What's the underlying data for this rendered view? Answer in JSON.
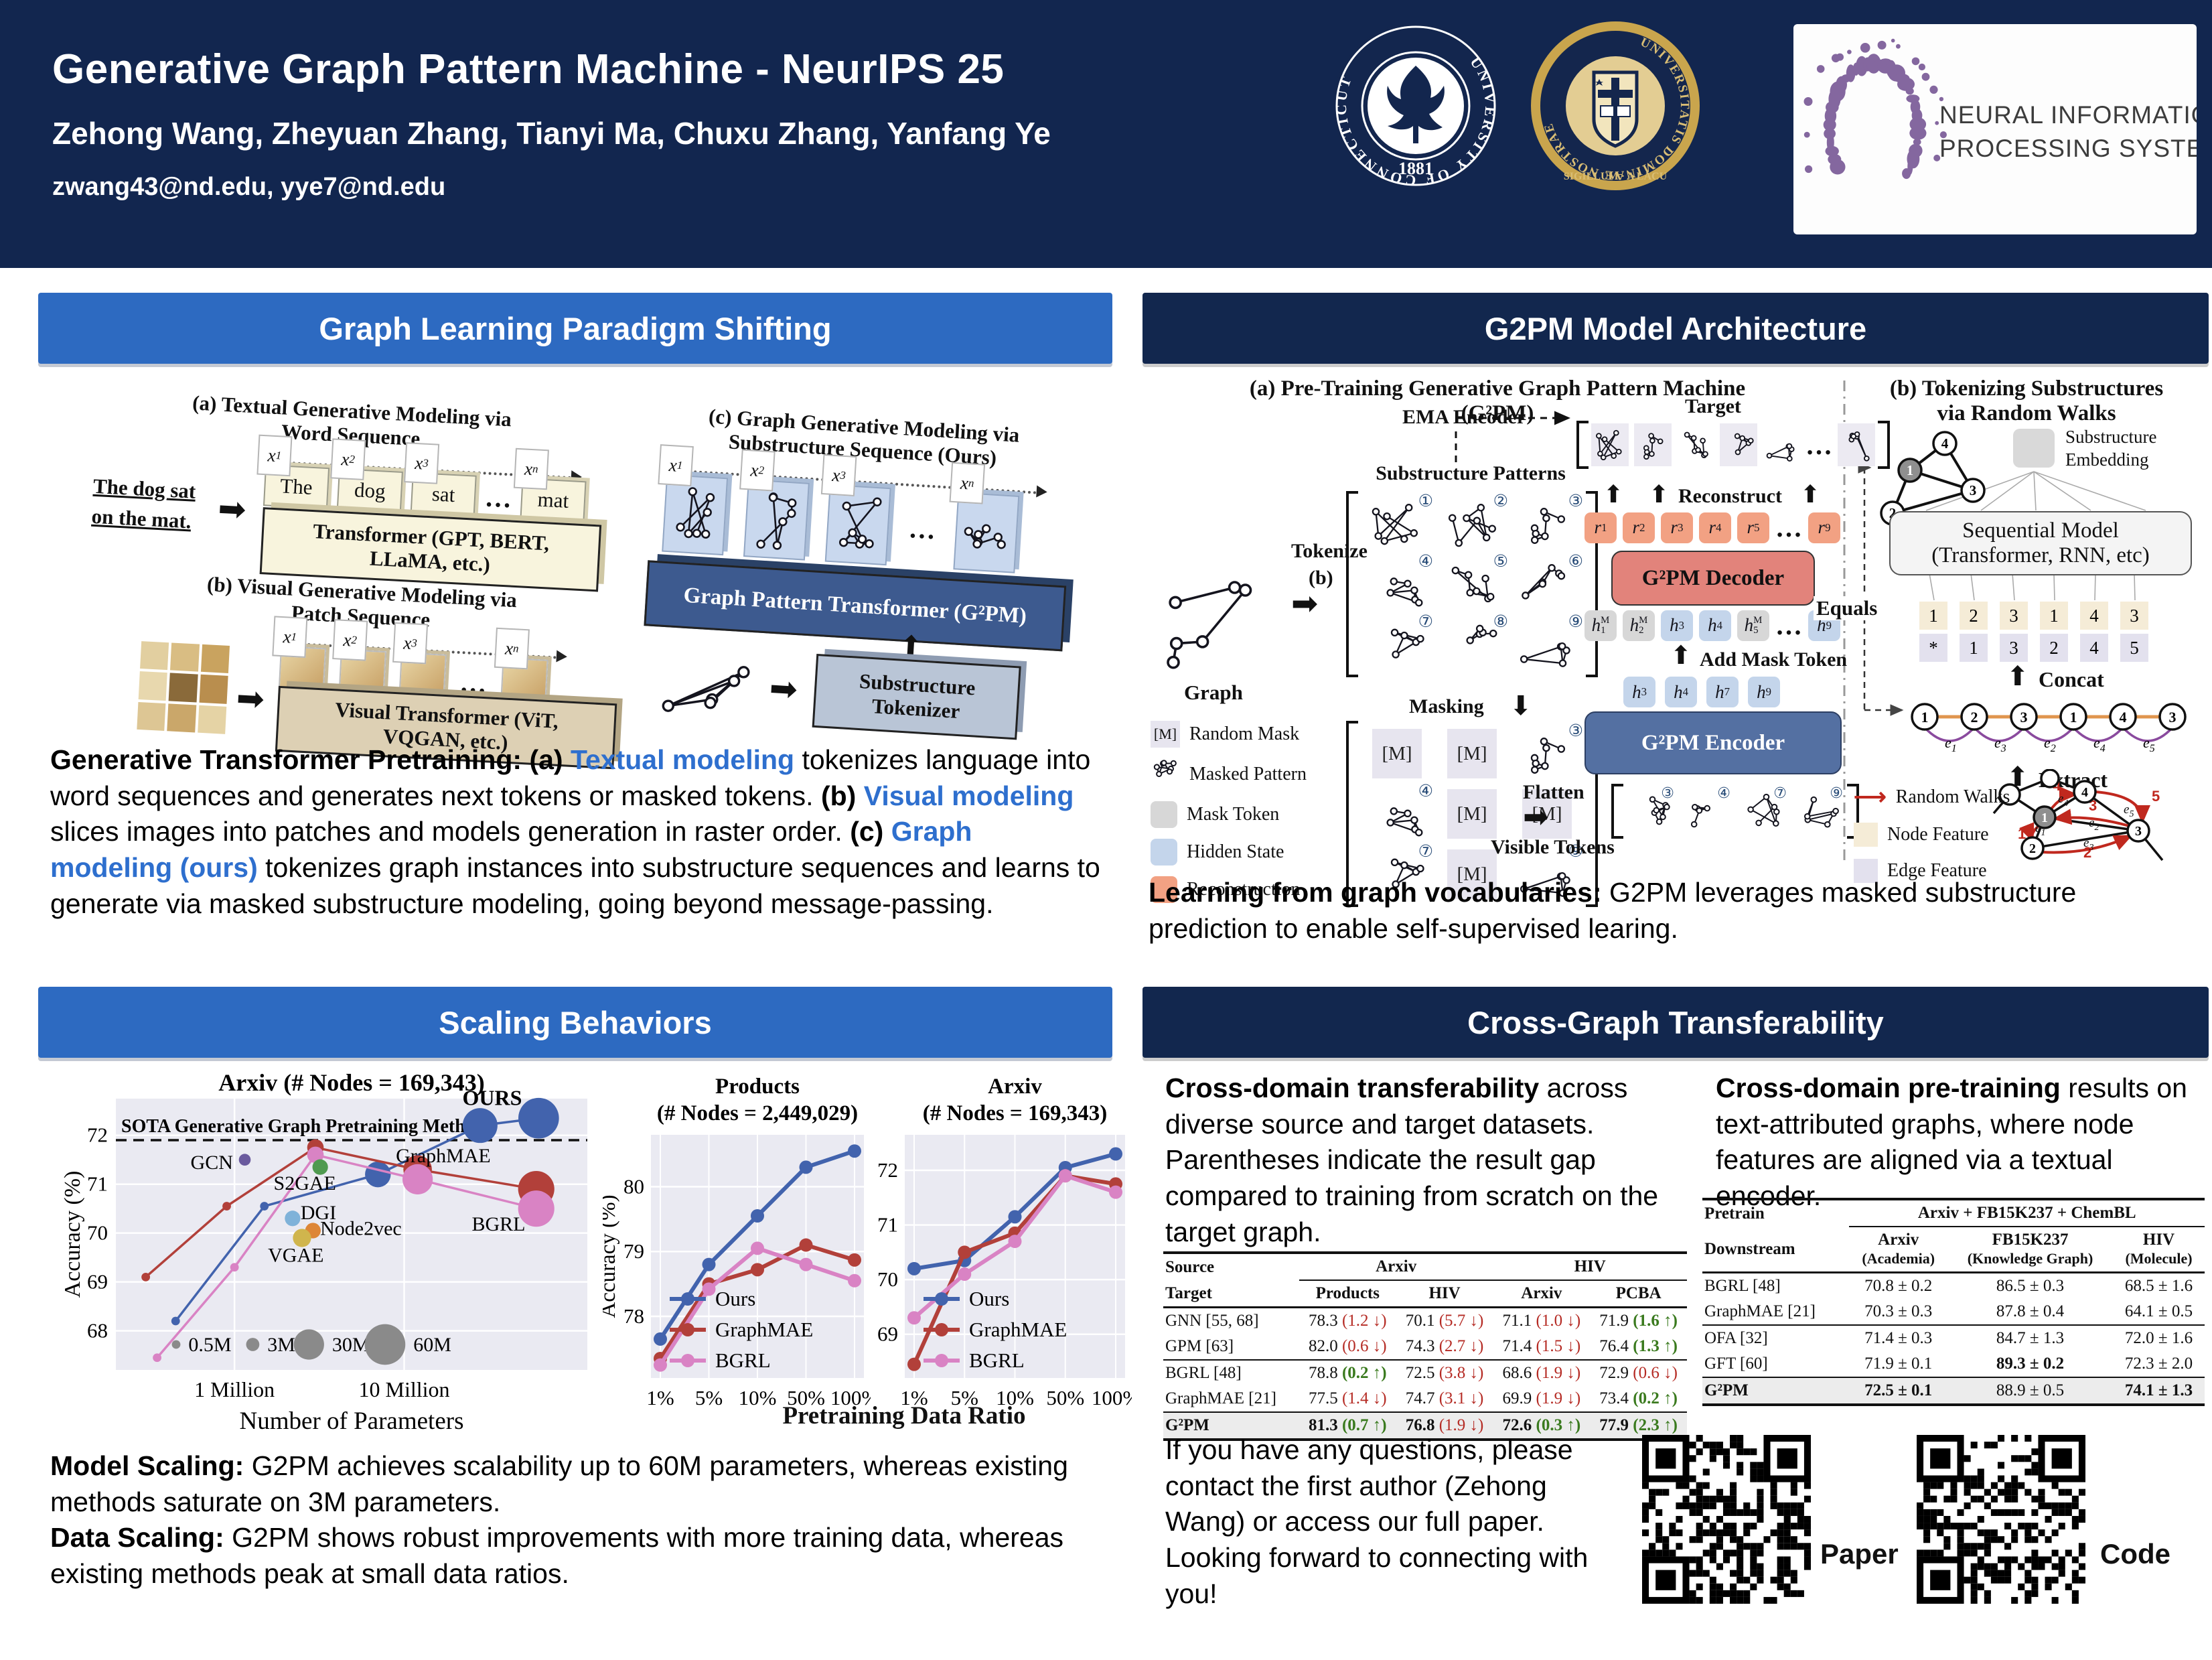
{
  "header": {
    "title": "Generative Graph Pattern Machine - NeurIPS 25",
    "authors": "Zehong Wang, Zheyuan Zhang, Tianyi Ma, Chuxu Zhang, Yanfang Ye",
    "emails": "zwang43@nd.edu, yye7@nd.edu",
    "uconn_seal": {
      "ring_text": "UNIVERSITY OF CONNECTICUT",
      "year": "1881"
    },
    "nd_seal": {
      "ring_top": "UNIVERSITATIS DOMINAE NOSTRAE",
      "ring_bottom": "SIGILLUM · A LACU"
    },
    "neurips": {
      "line1": "NEURAL INFORMATION",
      "line2": "PROCESSING SYSTEMS"
    }
  },
  "panel_headers": {
    "p1": "Graph Learning Paradigm Shifting",
    "p2": "G2PM Model Architecture",
    "p3": "Scaling Behaviors",
    "p4": "Cross-Graph Transferability"
  },
  "fig1": {
    "a_caption1": "(a) Textual Generative Modeling via",
    "a_caption2": "Word Sequence",
    "a_input1": "The dog sat",
    "a_input2": "on the mat.",
    "a_tokens": [
      {
        "tb": "x",
        "ts": "1",
        "word": "The"
      },
      {
        "tb": "x",
        "ts": "2",
        "word": "dog"
      },
      {
        "tb": "x",
        "ts": "3",
        "word": "sat"
      },
      {
        "dots": true
      },
      {
        "tb": "x",
        "ts": "n",
        "word": "mat"
      }
    ],
    "a_box1": "Transformer (GPT, BERT,",
    "a_box2": "LLaMA, etc.)",
    "b_caption1": "(b) Visual Generative Modeling via",
    "b_caption2": "Patch Sequence",
    "b_tokens": [
      {
        "tb": "x",
        "ts": "1"
      },
      {
        "tb": "x",
        "ts": "2"
      },
      {
        "tb": "x",
        "ts": "3"
      },
      {
        "dots": true
      },
      {
        "tb": "x",
        "ts": "n"
      }
    ],
    "b_box1": "Visual Transformer (ViT,",
    "b_box2": "VQGAN, etc.)",
    "c_caption1": "(c) Graph Generative Modeling via",
    "c_caption2": "Substructure Sequence (Ours)",
    "c_tokens": [
      {
        "tb": "x",
        "ts": "1"
      },
      {
        "tb": "x",
        "ts": "2"
      },
      {
        "tb": "x",
        "ts": "3"
      },
      {
        "dots": true
      },
      {
        "tb": "x",
        "ts": "n"
      }
    ],
    "c_box": "Graph Pattern Transformer (G²PM)",
    "c_tok1": "Substructure",
    "c_tok2": "Tokenizer"
  },
  "text1": {
    "segments": [
      {
        "t": "Generative Transformer Pretraining: (a) ",
        "b": true
      },
      {
        "t": "Textual modeling",
        "c": true
      },
      {
        "t": " tokenizes language into word sequences and generates next tokens or masked tokens. "
      },
      {
        "t": "(b) ",
        "b": true
      },
      {
        "t": "Visual modeling",
        "c": true
      },
      {
        "t": " slices images into patches and models generation in raster order. "
      },
      {
        "t": "(c) ",
        "b": true
      },
      {
        "t": "Graph modeling (ours)",
        "c": true
      },
      {
        "t": " tokenizes graph instances into substructure sequences and learns to generate via masked substructure modeling, going beyond message-passing."
      }
    ]
  },
  "fig2": {
    "a_caption": "(a) Pre-Training Generative Graph Pattern Machine (G²PM)",
    "b_caption1": "(b) Tokenizing Substructures",
    "b_caption2": "via Random Walks",
    "graph_label": "Graph",
    "tokenize1": "Tokenize",
    "tokenize2": "(b)",
    "patterns_label": "Substructure Patterns",
    "pattern_nums": [
      "①",
      "②",
      "③",
      "④",
      "⑤",
      "⑥",
      "⑦",
      "⑧",
      "⑨"
    ],
    "masking_label": "Masking",
    "ema_label": "EMA Encoder",
    "target_label": "Target",
    "reconstruct_label": "Reconstruct",
    "decoder_label": "G²PM Decoder",
    "encoder_label": "G²PM Encoder",
    "add_mask_label": "Add Mask Token",
    "flatten1": "Flatten",
    "flatten2": "Visible Tokens",
    "mask_cell": "[M]",
    "legend_a": [
      {
        "icon": "mask",
        "label": "Random Mask"
      },
      {
        "icon": "glyph",
        "label": "Masked Pattern"
      },
      {
        "icon": "gray",
        "label": "Mask Token"
      },
      {
        "icon": "blue",
        "label": "Hidden State"
      },
      {
        "icon": "orange",
        "label": "Reconstruction"
      }
    ],
    "r_chips": [
      {
        "b": "r",
        "s": "1"
      },
      {
        "b": "r",
        "s": "2"
      },
      {
        "b": "r",
        "s": "3"
      },
      {
        "b": "r",
        "s": "4"
      },
      {
        "b": "r",
        "s": "5"
      },
      {
        "dots": true
      },
      {
        "b": "r",
        "s": "9"
      }
    ],
    "hM_chips": [
      {
        "b": "h",
        "s": "1",
        "p": "M",
        "m": true
      },
      {
        "b": "h",
        "s": "2",
        "p": "M",
        "m": true
      },
      {
        "b": "h",
        "s": "3"
      },
      {
        "b": "h",
        "s": "4"
      },
      {
        "b": "h",
        "s": "5",
        "p": "M",
        "m": true
      },
      {
        "dots": true
      },
      {
        "b": "h",
        "s": "9"
      }
    ],
    "h_chips": [
      {
        "b": "h",
        "s": "3"
      },
      {
        "b": "h",
        "s": "4"
      },
      {
        "b": "h",
        "s": "7"
      },
      {
        "b": "h",
        "s": "9"
      }
    ],
    "visible_nums": [
      "③",
      "④",
      "⑦",
      "⑨"
    ],
    "masked_grid": [
      [
        "M",
        "M",
        "g2"
      ],
      [
        "g3",
        "M",
        "M"
      ],
      [
        "g6",
        "M",
        "g8"
      ]
    ],
    "equals_label": "Equals",
    "concat_label": "Concat",
    "extract_label": "Extract",
    "seq_model1": "Sequential Model",
    "seq_model2": "(Transformer, RNN, etc)",
    "sub_emb1": "Substructure",
    "sub_emb2": "Embedding",
    "node_seq": [
      "1",
      "2",
      "3",
      "1",
      "4",
      "3"
    ],
    "edge_seq": [
      "*",
      "1",
      "3",
      "2",
      "4",
      "5"
    ],
    "walk_nodes": [
      "1",
      "2",
      "3",
      "1",
      "4",
      "3"
    ],
    "walk_edge_labels": [
      {
        "b": "e",
        "s": "1"
      },
      {
        "b": "e",
        "s": "3"
      },
      {
        "b": "e",
        "s": "2"
      },
      {
        "b": "e",
        "s": "4"
      },
      {
        "b": "e",
        "s": "5"
      }
    ],
    "legend_b": [
      {
        "icon": "rarrow",
        "label": "Random Walks"
      },
      {
        "icon": "tan",
        "label": "Node Feature"
      },
      {
        "icon": "lav",
        "label": "Edge Feature"
      }
    ],
    "tri_nodes": [
      "4",
      "1",
      "3",
      "2"
    ],
    "wg_nodes": [
      "4",
      "1",
      "3",
      "2"
    ],
    "wg_steps": [
      "1",
      "2",
      "3",
      "4",
      "5"
    ],
    "wg_edges": [
      {
        "b": "e",
        "s": "1"
      },
      {
        "b": "e",
        "s": "2"
      },
      {
        "b": "e",
        "s": "3"
      },
      {
        "b": "e",
        "s": "4"
      },
      {
        "b": "e",
        "s": "5"
      }
    ]
  },
  "text2": {
    "segments": [
      {
        "t": "Learning from graph vocabularies: ",
        "b": true
      },
      {
        "t": "G2PM leverages masked substructure prediction to enable self-supervised learing."
      }
    ]
  },
  "chart_data": [
    {
      "type": "scatter",
      "title": "Arxiv (# Nodes = 169,343)",
      "xlabel": "Number of Parameters",
      "ylabel": "Accuracy (%)",
      "x_scale": "log (millions of parameters)",
      "xlim": [
        0.2,
        120
      ],
      "ylim": [
        67.2,
        72.75
      ],
      "x_ticks": [
        {
          "v": 1,
          "label": "1 Million"
        },
        {
          "v": 10,
          "label": "10 Million"
        }
      ],
      "y_ticks": [
        68,
        69,
        70,
        71,
        72
      ],
      "sota": {
        "y": 71.9,
        "label": "SOTA Generative Graph Pretraining Method"
      },
      "series": [
        {
          "name": "OURS",
          "color": "#4263ad",
          "points": [
            [
              0.45,
              68.2,
              0.5
            ],
            [
              1.5,
              70.55,
              0.5
            ],
            [
              7,
              71.2,
              20
            ],
            [
              28,
              72.2,
              42
            ],
            [
              62,
              72.35,
              60
            ]
          ]
        },
        {
          "name": "GraphMAE",
          "color": "#b2403a",
          "points": [
            [
              0.3,
              69.1,
              0.5
            ],
            [
              0.9,
              70.55,
              0.5
            ],
            [
              3,
              71.75,
              6
            ],
            [
              12,
              71.3,
              26
            ],
            [
              60,
              70.9,
              46
            ]
          ]
        },
        {
          "name": "BGRL",
          "color": "#d983c4",
          "points": [
            [
              0.35,
              67.45,
              0.5
            ],
            [
              1.0,
              69.3,
              0.5
            ],
            [
              3,
              71.6,
              6
            ],
            [
              12,
              71.1,
              30
            ],
            [
              60,
              70.5,
              46
            ]
          ]
        }
      ],
      "singles": [
        {
          "name": "GCN",
          "color": "#6a5a9e",
          "x": 1.15,
          "y": 71.5,
          "s": 2,
          "lx": 0.98,
          "ly": 71.45,
          "anchor": "end"
        },
        {
          "name": "S2GAE",
          "color": "#4f9a50",
          "x": 3.2,
          "y": 71.35,
          "s": 5,
          "lx": 1.7,
          "ly": 71.02,
          "anchor": "start"
        },
        {
          "name": "DGI",
          "color": "#7fb2d9",
          "x": 2.2,
          "y": 70.3,
          "s": 5,
          "lx": 2.45,
          "ly": 70.42,
          "anchor": "start"
        },
        {
          "name": "Node2vec",
          "color": "#dd8637",
          "x": 2.9,
          "y": 70.05,
          "s": 5,
          "lx": 3.2,
          "ly": 70.1,
          "anchor": "start"
        },
        {
          "name": "VGAE",
          "color": "#d0b54d",
          "x": 2.5,
          "y": 69.9,
          "s": 8,
          "lx": 2.3,
          "ly": 69.55,
          "anchor": "middle"
        }
      ],
      "series_labels": [
        {
          "text": "OURS",
          "x": 33,
          "y": 72.62,
          "bold": true
        },
        {
          "text": "GraphMAE",
          "x": 17,
          "y": 71.45
        },
        {
          "text": "BGRL",
          "x": 36,
          "y": 70.05
        }
      ],
      "size_legend": [
        {
          "s": 0.5,
          "label": "0.5M"
        },
        {
          "s": 3,
          "label": "3M"
        },
        {
          "s": 30,
          "label": "30M"
        },
        {
          "s": 60,
          "label": "60M"
        }
      ]
    },
    {
      "type": "line",
      "title1": "Products",
      "title2": "(# Nodes = 2,449,029)",
      "ylabel": "Accuracy (%)",
      "categories": [
        "1%",
        "5%",
        "10%",
        "50%",
        "100%"
      ],
      "y_ticks": [
        78,
        79,
        80
      ],
      "ylim": [
        77.05,
        80.8
      ],
      "legend": "inside-bottom-left",
      "series": [
        {
          "name": "Ours",
          "color": "#4263ad",
          "values": [
            77.65,
            78.8,
            79.55,
            80.3,
            80.55
          ]
        },
        {
          "name": "GraphMAE",
          "color": "#b2403a",
          "values": [
            77.35,
            78.5,
            78.72,
            79.1,
            78.87
          ]
        },
        {
          "name": "BGRL",
          "color": "#d983c4",
          "values": [
            77.25,
            78.42,
            79.05,
            78.8,
            78.55
          ]
        }
      ]
    },
    {
      "type": "line",
      "title1": "Arxiv",
      "title2": "(# Nodes = 169,343)",
      "ylabel": "",
      "categories": [
        "1%",
        "5%",
        "10%",
        "50%",
        "100%"
      ],
      "y_ticks": [
        69,
        70,
        71,
        72
      ],
      "ylim": [
        68.2,
        72.65
      ],
      "legend": "inside-bottom-left",
      "series": [
        {
          "name": "Ours",
          "color": "#4263ad",
          "values": [
            70.2,
            70.35,
            71.15,
            72.05,
            72.3
          ]
        },
        {
          "name": "GraphMAE",
          "color": "#b2403a",
          "values": [
            68.45,
            70.5,
            70.85,
            71.9,
            71.75
          ]
        },
        {
          "name": "BGRL",
          "color": "#d983c4",
          "values": [
            69.3,
            70.1,
            70.7,
            71.9,
            71.6
          ]
        }
      ]
    }
  ],
  "charts_xlabel": "Pretraining Data Ratio",
  "text3": {
    "segments": [
      {
        "t": "Model Scaling: ",
        "b": true
      },
      {
        "t": "G2PM achieves scalability up to 60M parameters, whereas existing methods saturate on 3M parameters."
      },
      {
        "br": true
      },
      {
        "t": "Data Scaling: ",
        "b": true
      },
      {
        "t": "G2PM shows robust improvements with more training data, whereas existing methods peak at small data ratios."
      }
    ]
  },
  "xfer": {
    "left_para": {
      "segments": [
        {
          "t": "Cross-domain transferability",
          "b": true
        },
        {
          "t": " across diverse source and target datasets. Parentheses indicate the result gap compared to training from scratch on the target graph."
        }
      ]
    },
    "right_para": {
      "segments": [
        {
          "t": "Cross-domain pre-training",
          "b": true
        },
        {
          "t": " results on text-attributed graphs, where node features are aligned via a textual encoder."
        }
      ]
    },
    "table1": {
      "group_header": {
        "source": "Source",
        "g1": "Arxiv",
        "g2": "HIV"
      },
      "sub_header": [
        "Target",
        "Products",
        "HIV",
        "Arxiv",
        "PCBA"
      ],
      "rows": [
        {
          "name": "GNN [55, 68]",
          "cells": [
            {
              "v": "78.3",
              "g": "1.2",
              "d": "down"
            },
            {
              "v": "70.1",
              "g": "5.7",
              "d": "down"
            },
            {
              "v": "71.1",
              "g": "1.0",
              "d": "down"
            },
            {
              "v": "71.9",
              "g": "1.6",
              "d": "up"
            }
          ]
        },
        {
          "name": "GPM [63]",
          "cells": [
            {
              "v": "82.0",
              "g": "0.6",
              "d": "down"
            },
            {
              "v": "74.3",
              "g": "2.7",
              "d": "down"
            },
            {
              "v": "71.4",
              "g": "1.5",
              "d": "down"
            },
            {
              "v": "76.4",
              "g": "1.3",
              "d": "up"
            }
          ]
        },
        {
          "name": "BGRL [48]",
          "sep": true,
          "cells": [
            {
              "v": "78.8",
              "g": "0.2",
              "d": "up"
            },
            {
              "v": "72.5",
              "g": "3.8",
              "d": "down"
            },
            {
              "v": "68.6",
              "g": "1.9",
              "d": "down"
            },
            {
              "v": "72.9",
              "g": "0.6",
              "d": "down"
            }
          ]
        },
        {
          "name": "GraphMAE [21]",
          "cells": [
            {
              "v": "77.5",
              "g": "1.4",
              "d": "down"
            },
            {
              "v": "74.7",
              "g": "3.1",
              "d": "down"
            },
            {
              "v": "69.9",
              "g": "1.9",
              "d": "down"
            },
            {
              "v": "73.4",
              "g": "0.2",
              "d": "up"
            }
          ]
        },
        {
          "name": "G²PM",
          "sep": true,
          "hl": true,
          "cells": [
            {
              "v": "81.3",
              "bold": true,
              "g": "0.7",
              "d": "up"
            },
            {
              "v": "76.8",
              "bold": true,
              "g": "1.9",
              "d": "down"
            },
            {
              "v": "72.6",
              "bold": true,
              "g": "0.3",
              "d": "up"
            },
            {
              "v": "77.9",
              "bold": true,
              "g": "2.3",
              "d": "up"
            }
          ]
        }
      ]
    },
    "table2": {
      "pretrain_label": "Pretrain",
      "pretrain_value": "Arxiv + FB15K237 + ChemBL",
      "downstream_label": "Downstream",
      "cols": [
        {
          "main": "Arxiv",
          "sub": "(Academia)"
        },
        {
          "main": "FB15K237",
          "sub": "(Knowledge Graph)"
        },
        {
          "main": "HIV",
          "sub": "(Molecule)"
        }
      ],
      "rows": [
        {
          "name": "BGRL [48]",
          "cells": [
            {
              "v": "70.8 ± 0.2"
            },
            {
              "v": "86.5 ± 0.3"
            },
            {
              "v": "68.5 ± 1.6"
            }
          ]
        },
        {
          "name": "GraphMAE [21]",
          "cells": [
            {
              "v": "70.3 ± 0.3"
            },
            {
              "v": "87.8 ± 0.4"
            },
            {
              "v": "64.1 ± 0.5"
            }
          ]
        },
        {
          "name": "OFA [32]",
          "sep": true,
          "cells": [
            {
              "v": "71.4 ± 0.3"
            },
            {
              "v": "84.7 ± 1.3"
            },
            {
              "v": "72.0 ± 1.6"
            }
          ]
        },
        {
          "name": "GFT [60]",
          "cells": [
            {
              "v": "71.9 ± 0.1"
            },
            {
              "v": "89.3 ± 0.2",
              "bold": true
            },
            {
              "v": "72.3 ± 2.0"
            }
          ]
        },
        {
          "name": "G²PM",
          "sep": true,
          "hl": true,
          "cells": [
            {
              "v": "72.5 ± 0.1",
              "bold": true
            },
            {
              "v": "88.9 ± 0.5"
            },
            {
              "v": "74.1 ± 1.3",
              "bold": true
            }
          ]
        }
      ]
    },
    "contact": "If you have any questions, please contact the first author (Zehong Wang) or access our full paper. Looking forward to connecting with you!",
    "qr_paper": "Paper",
    "qr_code": "Code"
  }
}
